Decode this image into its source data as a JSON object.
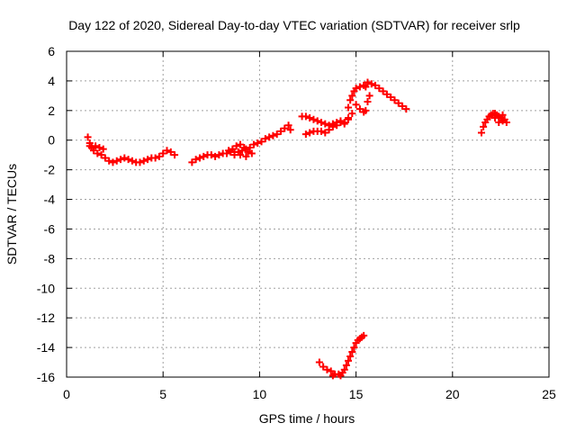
{
  "chart_data": {
    "type": "scatter",
    "title": "Day 122 of 2020, Sidereal Day-to-day VTEC variation (SDTVAR) for receiver srlp",
    "xlabel": "GPS time / hours",
    "ylabel": "SDTVAR / TECUs",
    "xlim": [
      0,
      25
    ],
    "ylim": [
      -16,
      6
    ],
    "xticks": [
      0,
      5,
      10,
      15,
      20,
      25
    ],
    "yticks": [
      -16,
      -14,
      -12,
      -10,
      -8,
      -6,
      -4,
      -2,
      0,
      2,
      4,
      6
    ],
    "grid": true,
    "marker": "plus",
    "color": "#ff0000",
    "series": [
      {
        "points": [
          [
            1.1,
            0.2
          ],
          [
            1.2,
            -0.2
          ],
          [
            1.3,
            -0.5
          ],
          [
            1.5,
            -0.4
          ],
          [
            1.7,
            -0.5
          ],
          [
            1.9,
            -0.6
          ],
          [
            1.2,
            -0.4
          ],
          [
            1.4,
            -0.7
          ],
          [
            1.6,
            -0.9
          ],
          [
            1.8,
            -1.0
          ],
          [
            2.0,
            -1.2
          ],
          [
            2.2,
            -1.4
          ],
          [
            2.4,
            -1.5
          ],
          [
            2.6,
            -1.4
          ],
          [
            2.8,
            -1.3
          ],
          [
            3.0,
            -1.2
          ],
          [
            3.2,
            -1.3
          ],
          [
            3.4,
            -1.4
          ],
          [
            3.6,
            -1.5
          ],
          [
            3.8,
            -1.5
          ],
          [
            4.0,
            -1.4
          ],
          [
            4.2,
            -1.3
          ],
          [
            4.4,
            -1.2
          ],
          [
            4.6,
            -1.2
          ],
          [
            4.8,
            -1.1
          ],
          [
            5.0,
            -0.9
          ],
          [
            5.2,
            -0.7
          ],
          [
            5.4,
            -0.8
          ],
          [
            5.6,
            -1.0
          ]
        ]
      },
      {
        "points": [
          [
            6.5,
            -1.5
          ],
          [
            6.7,
            -1.3
          ],
          [
            6.9,
            -1.2
          ],
          [
            7.1,
            -1.1
          ],
          [
            7.3,
            -1.0
          ],
          [
            7.5,
            -1.0
          ],
          [
            7.7,
            -1.1
          ],
          [
            7.9,
            -1.0
          ],
          [
            8.1,
            -0.9
          ],
          [
            8.3,
            -0.9
          ],
          [
            8.5,
            -0.8
          ],
          [
            8.7,
            -0.8
          ],
          [
            8.9,
            -0.8
          ],
          [
            9.1,
            -0.7
          ],
          [
            9.3,
            -0.6
          ],
          [
            9.5,
            -0.5
          ],
          [
            9.7,
            -0.3
          ],
          [
            9.9,
            -0.2
          ],
          [
            10.1,
            -0.1
          ],
          [
            10.3,
            0.1
          ],
          [
            10.5,
            0.2
          ],
          [
            10.7,
            0.3
          ],
          [
            10.9,
            0.4
          ],
          [
            11.1,
            0.6
          ],
          [
            11.3,
            0.8
          ],
          [
            11.5,
            1.0
          ],
          [
            11.6,
            0.7
          ],
          [
            8.6,
            -0.6
          ],
          [
            8.8,
            -0.4
          ],
          [
            9.0,
            -0.3
          ],
          [
            9.2,
            -0.5
          ],
          [
            9.4,
            -0.8
          ],
          [
            9.6,
            -0.9
          ],
          [
            8.4,
            -0.7
          ],
          [
            8.7,
            -1.0
          ],
          [
            9.0,
            -1.0
          ],
          [
            9.3,
            -1.1
          ]
        ]
      },
      {
        "points": [
          [
            12.2,
            1.6
          ],
          [
            12.4,
            1.6
          ],
          [
            12.6,
            1.5
          ],
          [
            12.8,
            1.4
          ],
          [
            13.0,
            1.3
          ],
          [
            13.2,
            1.2
          ],
          [
            13.4,
            1.1
          ],
          [
            13.6,
            1.0
          ],
          [
            13.8,
            1.1
          ],
          [
            14.0,
            1.2
          ],
          [
            14.2,
            1.3
          ],
          [
            14.4,
            1.2
          ],
          [
            14.6,
            1.5
          ],
          [
            14.8,
            1.8
          ],
          [
            12.4,
            0.4
          ],
          [
            12.6,
            0.5
          ],
          [
            12.8,
            0.6
          ],
          [
            13.0,
            0.6
          ],
          [
            13.2,
            0.6
          ],
          [
            13.4,
            0.5
          ],
          [
            13.6,
            0.7
          ],
          [
            13.8,
            0.9
          ],
          [
            14.0,
            1.0
          ],
          [
            14.2,
            1.2
          ],
          [
            14.4,
            1.1
          ],
          [
            14.6,
            1.4
          ]
        ]
      },
      {
        "points": [
          [
            14.6,
            2.2
          ],
          [
            14.7,
            2.7
          ],
          [
            14.8,
            3.0
          ],
          [
            14.9,
            3.3
          ],
          [
            15.0,
            3.5
          ],
          [
            15.2,
            3.6
          ],
          [
            15.4,
            3.7
          ],
          [
            15.5,
            3.6
          ],
          [
            15.6,
            3.9
          ],
          [
            15.8,
            3.8
          ],
          [
            16.0,
            3.7
          ],
          [
            16.2,
            3.5
          ],
          [
            16.4,
            3.3
          ],
          [
            16.6,
            3.1
          ],
          [
            16.8,
            2.9
          ],
          [
            17.0,
            2.7
          ],
          [
            17.2,
            2.5
          ],
          [
            17.4,
            2.3
          ],
          [
            17.6,
            2.1
          ],
          [
            15.0,
            2.4
          ],
          [
            15.2,
            2.1
          ],
          [
            15.4,
            1.9
          ],
          [
            15.5,
            2.0
          ],
          [
            15.6,
            2.6
          ],
          [
            15.7,
            3.0
          ]
        ]
      },
      {
        "points": [
          [
            21.5,
            0.5
          ],
          [
            21.6,
            0.9
          ],
          [
            21.7,
            1.2
          ],
          [
            21.8,
            1.4
          ],
          [
            21.9,
            1.6
          ],
          [
            22.0,
            1.7
          ],
          [
            22.1,
            1.8
          ],
          [
            22.2,
            1.8
          ],
          [
            22.3,
            1.7
          ],
          [
            22.4,
            1.6
          ],
          [
            22.5,
            1.5
          ],
          [
            22.6,
            1.7
          ],
          [
            22.7,
            1.4
          ],
          [
            22.8,
            1.2
          ],
          [
            22.2,
            1.5
          ],
          [
            22.4,
            1.2
          ],
          [
            22.6,
            1.3
          ]
        ]
      },
      {
        "points": [
          [
            13.1,
            -15.0
          ],
          [
            13.3,
            -15.3
          ],
          [
            13.5,
            -15.5
          ],
          [
            13.7,
            -15.6
          ],
          [
            13.9,
            -15.8
          ],
          [
            14.1,
            -15.8
          ],
          [
            14.3,
            -15.7
          ],
          [
            14.4,
            -15.5
          ],
          [
            14.5,
            -15.2
          ],
          [
            14.6,
            -14.9
          ],
          [
            14.7,
            -14.6
          ],
          [
            14.8,
            -14.3
          ],
          [
            14.9,
            -14.0
          ],
          [
            15.0,
            -13.7
          ],
          [
            15.1,
            -13.5
          ],
          [
            15.2,
            -13.4
          ],
          [
            15.4,
            -13.2
          ],
          [
            13.8,
            -15.9
          ],
          [
            14.2,
            -15.9
          ],
          [
            15.3,
            -13.3
          ]
        ]
      }
    ]
  }
}
